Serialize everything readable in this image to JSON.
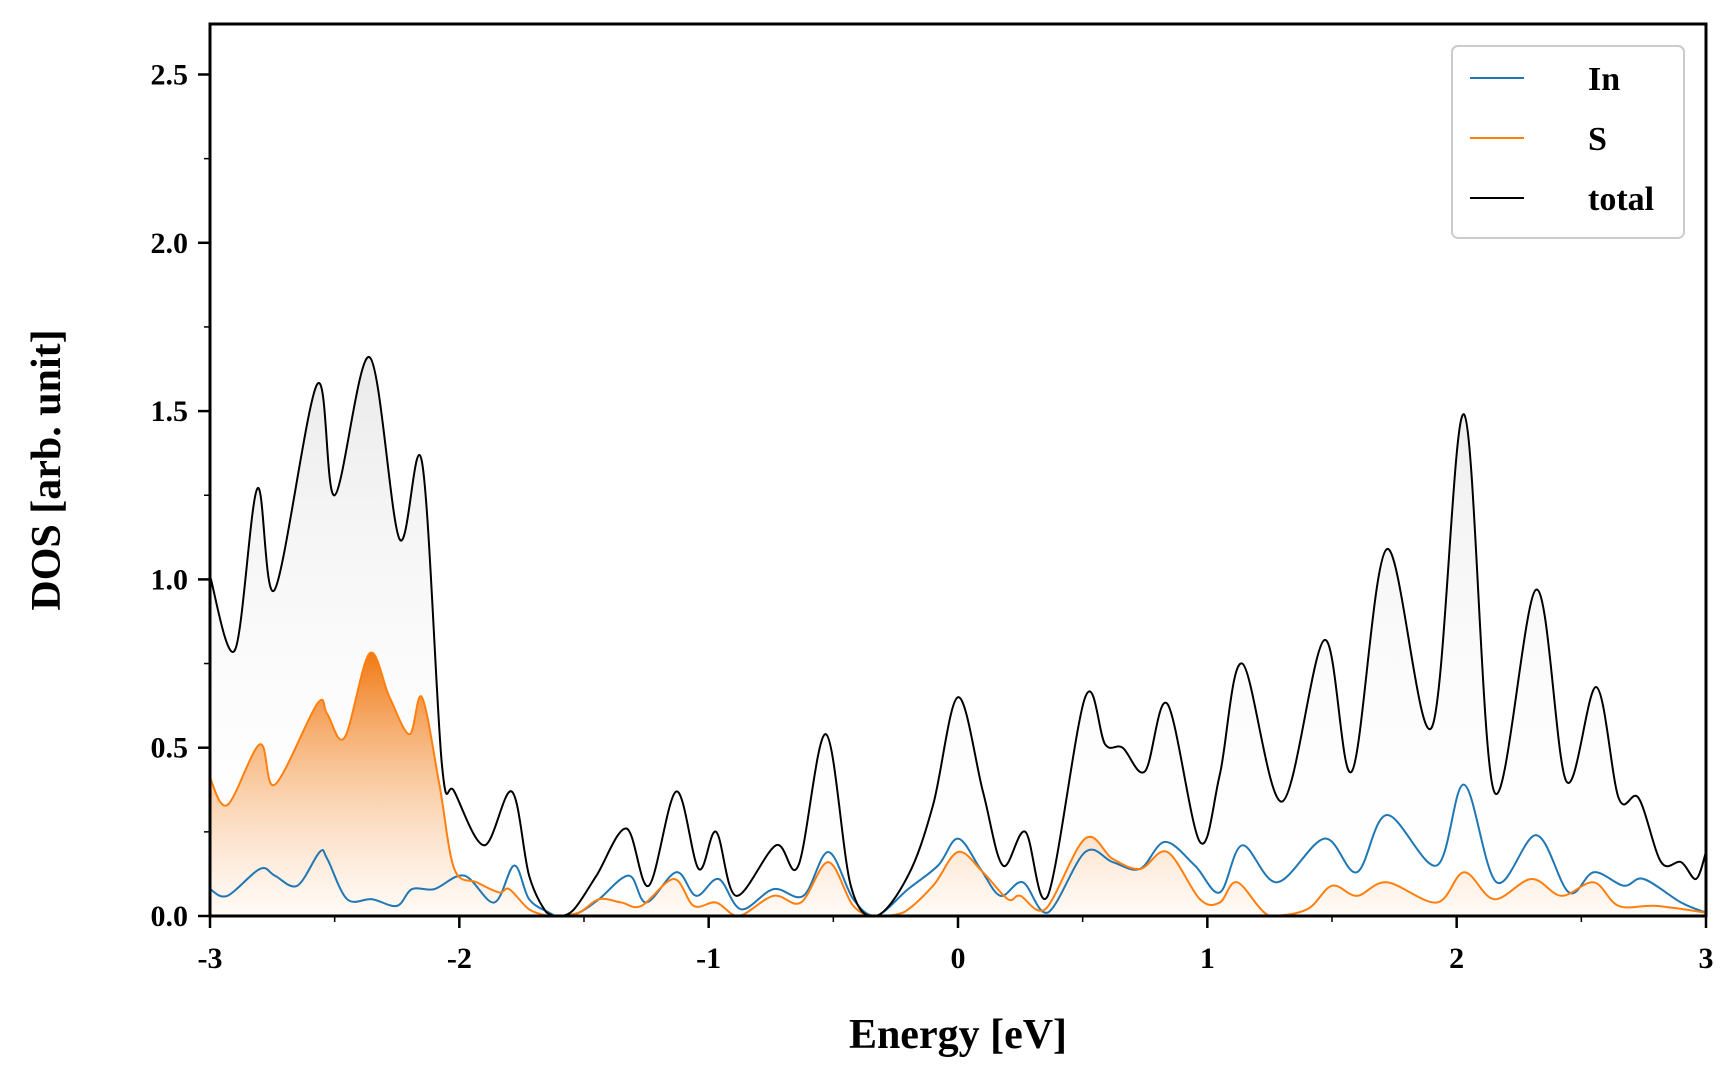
{
  "chart_data": {
    "type": "line",
    "title": "",
    "xlabel": "Energy [eV]",
    "ylabel": "DOS [arb. unit]",
    "xlim": [
      -3,
      3
    ],
    "ylim": [
      0,
      2.65
    ],
    "xticks": [
      -3,
      -2,
      -1,
      0,
      1,
      2,
      3
    ],
    "xtick_labels": [
      "-3",
      "-2",
      "-1",
      "0",
      "1",
      "2",
      "3"
    ],
    "yticks": [
      0,
      0.5,
      1.0,
      1.5,
      2.0,
      2.5
    ],
    "ytick_labels": [
      "0.0",
      "0.5",
      "1.0",
      "1.5",
      "2.0",
      "2.5"
    ],
    "grid": false,
    "legend_position": "top-right",
    "series": [
      {
        "name": "In",
        "color": "#1f77b4",
        "fill": false,
        "x": [
          -3.0,
          -2.93,
          -2.8,
          -2.74,
          -2.65,
          -2.56,
          -2.53,
          -2.45,
          -2.35,
          -2.25,
          -2.19,
          -2.1,
          -1.98,
          -1.86,
          -1.78,
          -1.72,
          -1.64,
          -1.6,
          -1.52,
          -1.44,
          -1.32,
          -1.25,
          -1.13,
          -1.05,
          -0.96,
          -0.87,
          -0.74,
          -0.62,
          -0.52,
          -0.42,
          -0.33,
          -0.2,
          -0.08,
          0.0,
          0.09,
          0.17,
          0.26,
          0.36,
          0.51,
          0.62,
          0.73,
          0.83,
          0.95,
          1.05,
          1.14,
          1.28,
          1.47,
          1.6,
          1.72,
          1.92,
          2.03,
          2.16,
          2.32,
          2.45,
          2.55,
          2.67,
          2.75,
          2.9,
          3.0
        ],
        "y": [
          0.08,
          0.06,
          0.14,
          0.12,
          0.09,
          0.19,
          0.17,
          0.05,
          0.05,
          0.03,
          0.08,
          0.08,
          0.12,
          0.04,
          0.15,
          0.05,
          0.01,
          0.0,
          0.01,
          0.05,
          0.12,
          0.04,
          0.13,
          0.06,
          0.11,
          0.02,
          0.08,
          0.06,
          0.19,
          0.05,
          0.0,
          0.08,
          0.15,
          0.23,
          0.14,
          0.06,
          0.1,
          0.01,
          0.19,
          0.16,
          0.14,
          0.22,
          0.15,
          0.07,
          0.21,
          0.1,
          0.23,
          0.13,
          0.3,
          0.15,
          0.39,
          0.1,
          0.24,
          0.07,
          0.13,
          0.09,
          0.11,
          0.04,
          0.01
        ]
      },
      {
        "name": "S",
        "color": "#ff7f0e",
        "fill": true,
        "x": [
          -3.0,
          -2.93,
          -2.8,
          -2.74,
          -2.57,
          -2.53,
          -2.46,
          -2.36,
          -2.28,
          -2.2,
          -2.15,
          -2.08,
          -2.02,
          -1.93,
          -1.84,
          -1.8,
          -1.72,
          -1.64,
          -1.6,
          -1.52,
          -1.44,
          -1.35,
          -1.27,
          -1.14,
          -1.06,
          -0.97,
          -0.88,
          -0.74,
          -0.63,
          -0.52,
          -0.42,
          -0.33,
          -0.22,
          -0.1,
          0.0,
          0.1,
          0.2,
          0.25,
          0.35,
          0.51,
          0.62,
          0.73,
          0.84,
          0.97,
          1.05,
          1.12,
          1.25,
          1.4,
          1.5,
          1.6,
          1.72,
          1.92,
          2.03,
          2.15,
          2.3,
          2.42,
          2.55,
          2.65,
          2.8,
          3.0
        ],
        "y": [
          0.41,
          0.33,
          0.51,
          0.39,
          0.63,
          0.6,
          0.53,
          0.78,
          0.65,
          0.54,
          0.65,
          0.39,
          0.14,
          0.1,
          0.07,
          0.08,
          0.02,
          0.0,
          0.0,
          0.01,
          0.05,
          0.04,
          0.03,
          0.11,
          0.03,
          0.04,
          0.0,
          0.06,
          0.04,
          0.16,
          0.03,
          0.0,
          0.01,
          0.09,
          0.19,
          0.13,
          0.05,
          0.06,
          0.02,
          0.23,
          0.17,
          0.14,
          0.19,
          0.05,
          0.04,
          0.1,
          0.0,
          0.02,
          0.09,
          0.06,
          0.1,
          0.04,
          0.13,
          0.05,
          0.11,
          0.06,
          0.1,
          0.03,
          0.03,
          0.01
        ]
      },
      {
        "name": "total",
        "color": "#000000",
        "fill": true,
        "x": [
          -3.0,
          -2.9,
          -2.81,
          -2.74,
          -2.57,
          -2.5,
          -2.36,
          -2.24,
          -2.15,
          -2.07,
          -2.02,
          -1.9,
          -1.79,
          -1.72,
          -1.65,
          -1.6,
          -1.54,
          -1.45,
          -1.33,
          -1.24,
          -1.13,
          -1.04,
          -0.97,
          -0.89,
          -0.73,
          -0.64,
          -0.53,
          -0.43,
          -0.33,
          -0.2,
          -0.1,
          0.0,
          0.1,
          0.18,
          0.27,
          0.36,
          0.51,
          0.59,
          0.66,
          0.75,
          0.84,
          0.97,
          1.05,
          1.14,
          1.3,
          1.47,
          1.58,
          1.72,
          1.9,
          2.03,
          2.15,
          2.32,
          2.44,
          2.56,
          2.65,
          2.73,
          2.82,
          2.9,
          2.96,
          3.0
        ],
        "y": [
          1.01,
          0.79,
          1.27,
          0.97,
          1.58,
          1.25,
          1.66,
          1.12,
          1.35,
          0.45,
          0.37,
          0.21,
          0.37,
          0.12,
          0.01,
          0.0,
          0.02,
          0.12,
          0.26,
          0.09,
          0.37,
          0.14,
          0.25,
          0.06,
          0.21,
          0.15,
          0.54,
          0.09,
          0.0,
          0.12,
          0.33,
          0.65,
          0.37,
          0.15,
          0.25,
          0.06,
          0.65,
          0.51,
          0.5,
          0.43,
          0.63,
          0.22,
          0.42,
          0.75,
          0.34,
          0.82,
          0.43,
          1.09,
          0.56,
          1.49,
          0.37,
          0.97,
          0.4,
          0.68,
          0.35,
          0.35,
          0.16,
          0.16,
          0.11,
          0.19
        ]
      }
    ]
  }
}
